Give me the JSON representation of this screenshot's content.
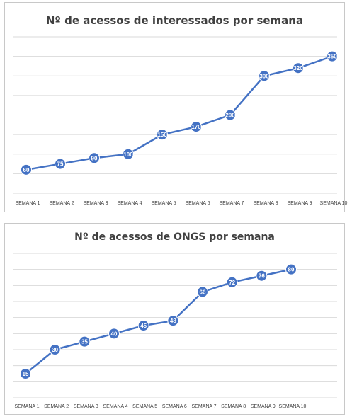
{
  "chart_data": [
    {
      "type": "line",
      "title": "Nº de acessos de interessados por semana",
      "xlabel": "",
      "ylabel": "",
      "categories": [
        "SEMANA 1",
        "SEMANA 2",
        "SEMANA 3",
        "SEMANA 4",
        "SEMANA 5",
        "SEMANA 6",
        "SEMANA 7",
        "SEMANA 8",
        "SEMANA 9",
        "SEMANA 10"
      ],
      "series": [
        {
          "values": [
            60,
            75,
            90,
            100,
            150,
            170,
            200,
            300,
            320,
            350
          ]
        }
      ],
      "ylim": [
        0,
        400
      ],
      "grid": true,
      "legend": "none",
      "data_labels": true,
      "line_color": "#4472C4",
      "marker_color": "#4472C4",
      "grid_color": "#d9d9d9"
    },
    {
      "type": "line",
      "title": "Nº de acessos de ONGS por semana",
      "xlabel": "",
      "ylabel": "",
      "categories": [
        "SEMANA 1",
        "SEMANA 2",
        "SEMANA 3",
        "SEMANA 4",
        "SEMANA 5",
        "SEMANA 6",
        "SEMANA 7",
        "SEMANA 8",
        "SEMANA 9",
        "SEMANA 10"
      ],
      "series": [
        {
          "values": [
            15,
            30,
            35,
            40,
            45,
            48,
            66,
            72,
            76,
            80
          ]
        }
      ],
      "ylim": [
        0,
        90
      ],
      "grid": true,
      "legend": "none",
      "data_labels": true,
      "line_color": "#4472C4",
      "marker_color": "#4472C4",
      "grid_color": "#d9d9d9"
    }
  ]
}
